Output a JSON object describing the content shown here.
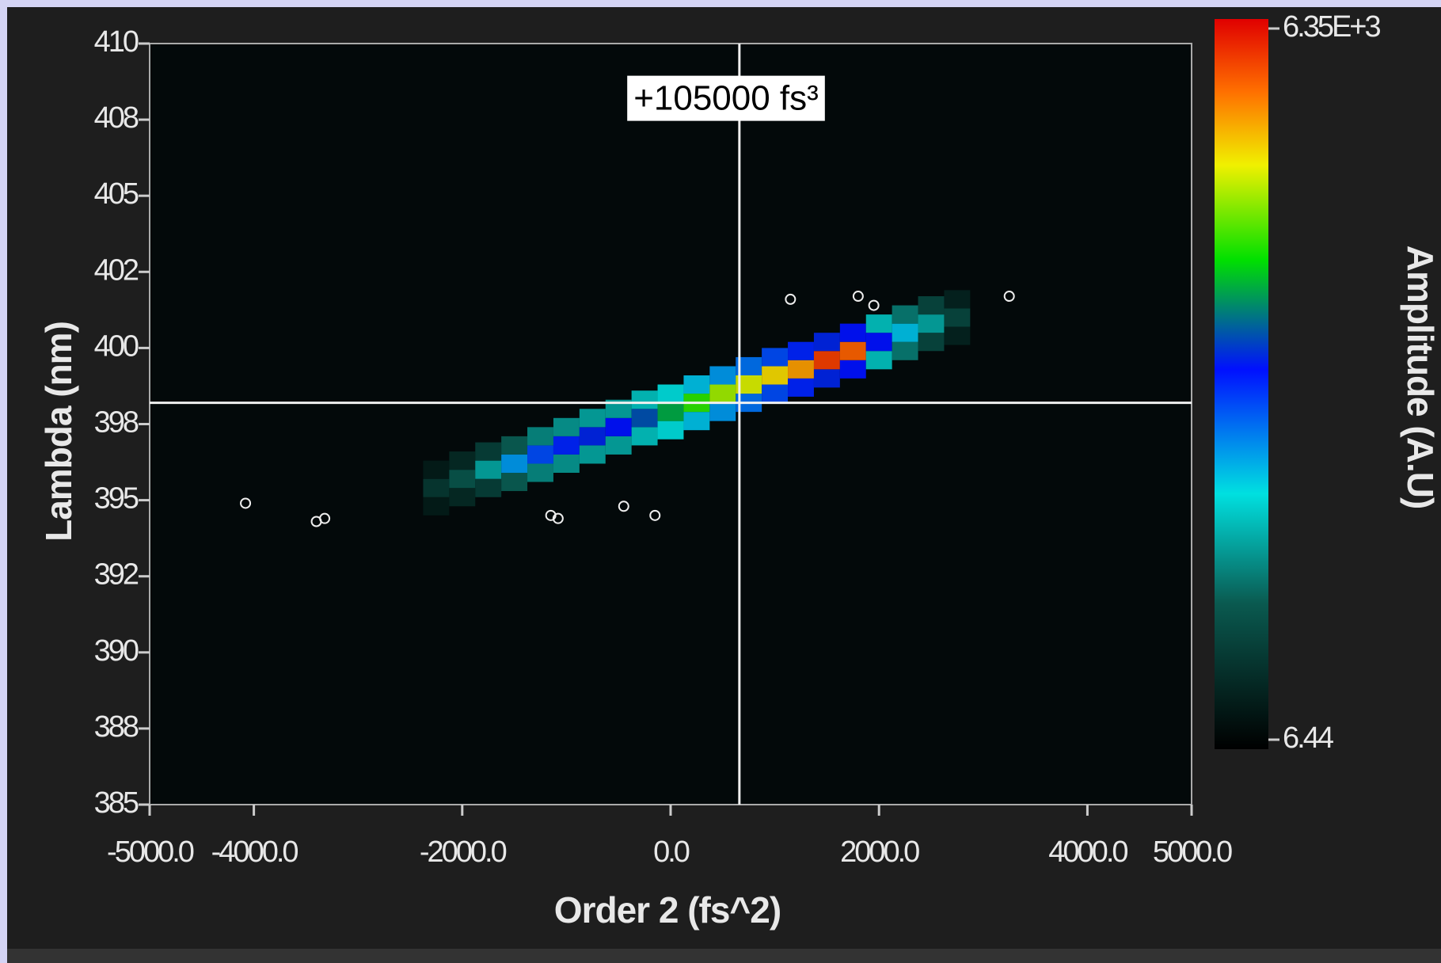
{
  "chart_data": {
    "type": "heatmap",
    "annotation": "+105000 fs³",
    "x_label": "Order 2 (fs^2)",
    "y_label": "Lambda (nm)",
    "colorbar_label": "Amplitude (A.U)",
    "xlim": [
      -5000,
      5000
    ],
    "xticks": [
      {
        "value": -5000,
        "label": "-5000.0"
      },
      {
        "value": -4000,
        "label": "-4000.0"
      },
      {
        "value": -2000,
        "label": "-2000.0"
      },
      {
        "value": 0,
        "label": "0.0"
      },
      {
        "value": 2000,
        "label": "2000.0"
      },
      {
        "value": 4000,
        "label": "4000.0"
      },
      {
        "value": 5000,
        "label": "5000.0"
      }
    ],
    "ylim": [
      385,
      410
    ],
    "yticks": [
      410,
      {
        "value": 407.5,
        "label": "408"
      },
      405,
      {
        "value": 402.5,
        "label": "402"
      },
      400,
      {
        "value": 397.5,
        "label": "398"
      },
      395,
      {
        "value": 392.5,
        "label": "392"
      },
      390,
      {
        "value": 387.5,
        "label": "388"
      },
      385
    ],
    "grid": false,
    "colorbar": {
      "zlim": [
        6.44,
        6350
      ],
      "ticks": [
        {
          "value": 6350,
          "label": "6.35E+3"
        },
        6.44
      ],
      "colorscale": [
        [
          0,
          "#000000"
        ],
        [
          0.2,
          "#0a5a50"
        ],
        [
          0.35,
          "#00e0e0"
        ],
        [
          0.52,
          "#0010ff"
        ],
        [
          0.67,
          "#00e000"
        ],
        [
          0.8,
          "#f0f000"
        ],
        [
          0.9,
          "#ff7000"
        ],
        [
          1,
          "#e00000"
        ]
      ]
    },
    "cell_size": [
      250,
      0.6
    ],
    "cells": {
      "x": [
        -2250,
        -2250,
        -2250,
        -2000,
        -2000,
        -2000,
        -1750,
        -1750,
        -1750,
        -1500,
        -1500,
        -1500,
        -1250,
        -1250,
        -1250,
        -1000,
        -1000,
        -1000,
        -750,
        -750,
        -750,
        -500,
        -500,
        -500,
        -250,
        -250,
        -250,
        0,
        0,
        0,
        250,
        250,
        250,
        500,
        500,
        500,
        750,
        750,
        750,
        1000,
        1000,
        1000,
        1250,
        1250,
        1250,
        1500,
        1500,
        1500,
        1750,
        1750,
        1750,
        2000,
        2000,
        2000,
        2250,
        2250,
        2250,
        2500,
        2500,
        2500,
        2750,
        2750,
        2750
      ],
      "y": [
        394.8,
        395.4,
        396.0,
        395.1,
        395.7,
        396.3,
        395.4,
        396.0,
        396.6,
        395.6,
        396.2,
        396.8,
        395.9,
        396.5,
        397.1,
        396.2,
        396.8,
        397.4,
        396.5,
        397.1,
        397.7,
        396.8,
        397.4,
        398.0,
        397.1,
        397.7,
        398.3,
        397.3,
        397.9,
        398.5,
        397.6,
        398.2,
        398.8,
        397.9,
        398.5,
        399.1,
        398.2,
        398.8,
        399.4,
        398.5,
        399.1,
        399.7,
        398.7,
        399.3,
        399.9,
        399.0,
        399.6,
        400.2,
        399.3,
        399.9,
        400.5,
        399.6,
        400.2,
        400.8,
        399.9,
        400.5,
        401.1,
        400.2,
        400.8,
        401.4,
        400.4,
        401.0,
        401.6
      ],
      "z": [
        400,
        800,
        400,
        600,
        1200,
        600,
        900,
        1800,
        900,
        1300,
        2600,
        1300,
        1600,
        3000,
        1600,
        1700,
        3200,
        1700,
        1800,
        3400,
        1800,
        1800,
        3300,
        1800,
        2000,
        3600,
        2000,
        2200,
        4000,
        2200,
        2400,
        4400,
        2400,
        2600,
        4800,
        2600,
        2800,
        5000,
        2800,
        3000,
        5200,
        3000,
        3200,
        5500,
        3200,
        3400,
        6000,
        3400,
        3300,
        5800,
        3300,
        2000,
        3300,
        2000,
        1500,
        2400,
        1500,
        1000,
        1800,
        1000,
        500,
        1000,
        500
      ]
    },
    "points": {
      "x": [
        -4080,
        -3400,
        -3320,
        -1150,
        -1080,
        -450,
        -150,
        1150,
        1800,
        1950,
        3250
      ],
      "y": [
        394.9,
        394.3,
        394.4,
        394.5,
        394.4,
        394.8,
        394.5,
        401.6,
        401.7,
        401.4,
        401.7
      ]
    },
    "cursor": {
      "x": 660,
      "y": 398.2
    }
  }
}
